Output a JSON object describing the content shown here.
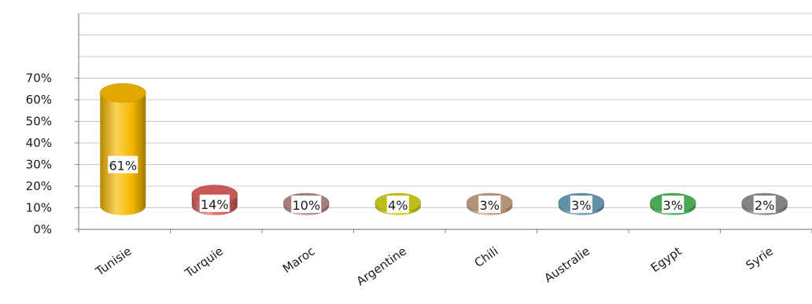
{
  "chart_data": {
    "type": "bar",
    "bar_style": "3d-cylinder",
    "categories": [
      "Tunisie",
      "Turquie",
      "Maroc",
      "Argentine",
      "Chili",
      "Australie",
      "Egypt",
      "Syrie"
    ],
    "values": [
      61,
      14,
      10,
      4,
      3,
      3,
      3,
      2
    ],
    "data_labels": [
      "61%",
      "14%",
      "10%",
      "4%",
      "3%",
      "3%",
      "3%",
      "2%"
    ],
    "colors": [
      "#f5b800",
      "#d9605e",
      "#b48a86",
      "#cfcf1a",
      "#c4a184",
      "#6c9db3",
      "#52b560",
      "#8e8e8e"
    ],
    "title": "",
    "xlabel": "",
    "ylabel": "",
    "yticks": [
      {
        "value": 0,
        "label": "0%"
      },
      {
        "value": 10,
        "label": "10%"
      },
      {
        "value": 20,
        "label": "20%"
      },
      {
        "value": 30,
        "label": "30%"
      },
      {
        "value": 40,
        "label": "40%"
      },
      {
        "value": 50,
        "label": "50%"
      },
      {
        "value": 60,
        "label": "60%"
      },
      {
        "value": 70,
        "label": "70%"
      }
    ],
    "ylim": [
      0,
      100
    ],
    "grid": true,
    "legend": "none"
  }
}
